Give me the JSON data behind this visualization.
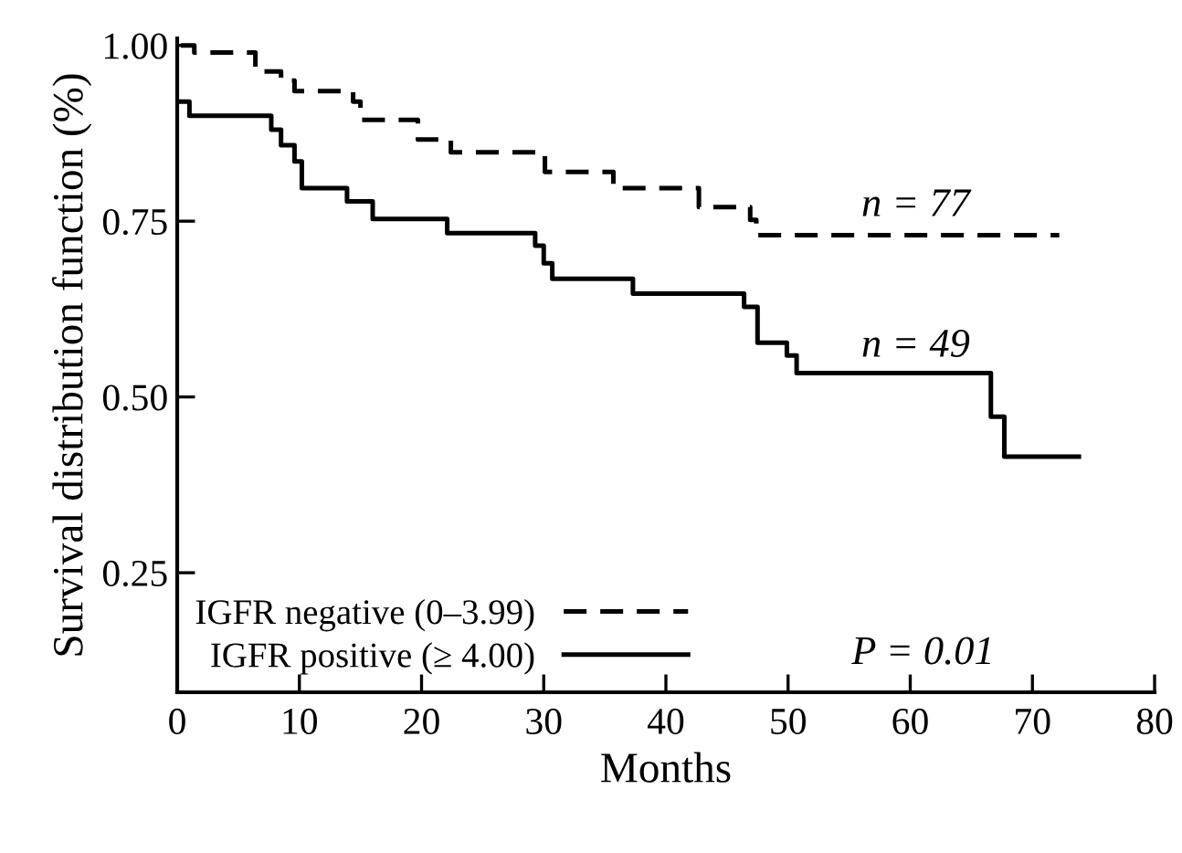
{
  "chart_data": {
    "type": "step",
    "xlabel": "Months",
    "ylabel": "Survival distribution function (%)",
    "xlim": [
      0,
      80
    ],
    "xticks": [
      0,
      10,
      20,
      30,
      40,
      50,
      60,
      70,
      80
    ],
    "ylim": [
      0.08,
      1.01
    ],
    "yticks": [
      {
        "value": 0.25,
        "label": "0.25"
      },
      {
        "value": 0.5,
        "label": "0.50"
      },
      {
        "value": 0.75,
        "label": "0.75"
      },
      {
        "value": 1.0,
        "label": "1.00"
      }
    ],
    "grid": false,
    "legend": "bottom left",
    "marker": "none",
    "series": [
      {
        "name": "IGFR negative (0–3.99)",
        "color": "#000000",
        "line_style": "dashed",
        "x": [
          0.3,
          1.4,
          6.4,
          8.5,
          9.6,
          14.4,
          15.0,
          19.7,
          22.4,
          30.1,
          35.7,
          42.7,
          46.9,
          47.4,
          72.2
        ],
        "values": [
          1.0,
          0.99,
          0.963,
          0.95,
          0.935,
          0.92,
          0.894,
          0.866,
          0.848,
          0.82,
          0.797,
          0.77,
          0.752,
          0.73,
          0.73
        ]
      },
      {
        "name": "IGFR positive (≥ 4.00)",
        "color": "#000000",
        "line_style": "solid",
        "x": [
          0.3,
          1.0,
          7.7,
          8.5,
          9.6,
          10.2,
          13.9,
          16.0,
          22.1,
          29.3,
          30.0,
          30.7,
          37.3,
          46.4,
          47.5,
          49.9,
          50.7,
          66.6,
          67.7,
          73.8
        ],
        "values": [
          0.92,
          0.9,
          0.88,
          0.858,
          0.835,
          0.797,
          0.778,
          0.753,
          0.733,
          0.715,
          0.69,
          0.668,
          0.647,
          0.628,
          0.577,
          0.559,
          0.534,
          0.472,
          0.415,
          0.415
        ]
      }
    ],
    "annotations": [
      {
        "text": "n = 77",
        "x": 56,
        "y": 0.745
      },
      {
        "text": "n = 49",
        "x": 56,
        "y": 0.545
      },
      "P = 0.01"
    ]
  }
}
